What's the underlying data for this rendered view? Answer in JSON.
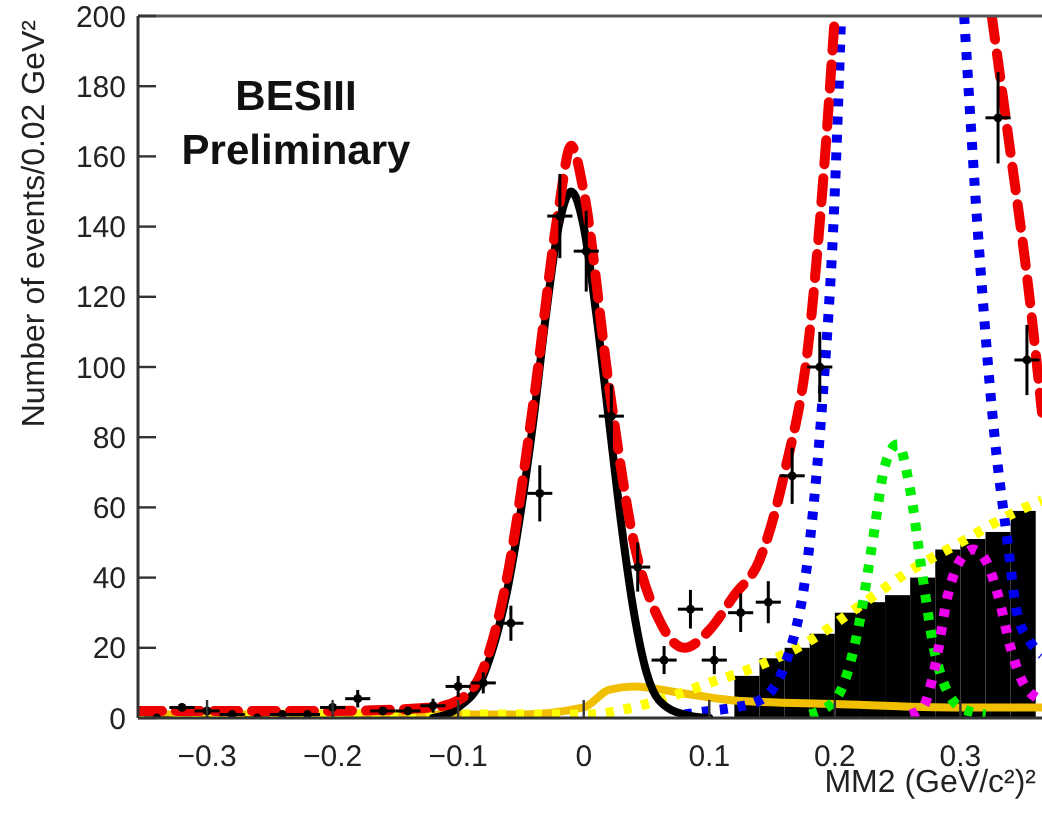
{
  "chart_data": {
    "type": "line",
    "xlabel": "MM2 (GeV/c²)²",
    "ylabel": "Number of events/0.02 GeV²",
    "annotations": [
      "BESIII",
      "Preliminary"
    ],
    "xlim": [
      -0.355,
      0.365
    ],
    "ylim": [
      0,
      200
    ],
    "xticks": [
      {
        "value": -0.3,
        "label": "−0.3"
      },
      {
        "value": -0.2,
        "label": "−0.2"
      },
      {
        "value": -0.1,
        "label": "−0.1"
      },
      0,
      0.1,
      0.2,
      0.3
    ],
    "yticks": [
      0,
      20,
      40,
      60,
      80,
      100,
      120,
      140,
      160,
      180,
      200
    ],
    "grid": false,
    "series": [
      {
        "type": "histogram",
        "color": "#000000",
        "bins": [
          0.12,
          0.14,
          0.16,
          0.18,
          0.2,
          0.22,
          0.24,
          0.26,
          0.28,
          0.3,
          0.32,
          0.34,
          0.36
        ],
        "values": [
          12,
          17,
          20,
          24,
          30,
          33,
          35,
          40,
          48,
          51,
          53,
          59
        ]
      },
      {
        "color": "#f0c000",
        "line_style": "solid",
        "x": [
          -0.355,
          -0.2,
          -0.05,
          0,
          0.02,
          0.04,
          0.08,
          0.12,
          0.2,
          0.3,
          0.365
        ],
        "values": [
          1,
          1,
          1,
          3,
          8,
          9,
          7,
          5,
          4,
          3,
          3
        ]
      },
      {
        "type": "line",
        "color": "#ffff00",
        "line_style": "dotted",
        "x": [
          -0.355,
          0,
          0.06,
          0.1,
          0.14,
          0.18,
          0.22,
          0.26,
          0.3,
          0.34,
          0.365
        ],
        "values": [
          1,
          1,
          5,
          10,
          15,
          22,
          32,
          42,
          50,
          58,
          62
        ]
      },
      {
        "type": "line",
        "color": "#00ee00",
        "line_style": "dotted",
        "x": [
          0.18,
          0.2,
          0.22,
          0.23,
          0.24,
          0.25,
          0.26,
          0.27,
          0.28,
          0.3,
          0.32
        ],
        "values": [
          1,
          5,
          28,
          50,
          72,
          78,
          65,
          40,
          18,
          3,
          1
        ]
      },
      {
        "type": "line",
        "color": "#ee00ee",
        "line_style": "dotted",
        "x": [
          0.26,
          0.27,
          0.28,
          0.29,
          0.3,
          0.31,
          0.32,
          0.33,
          0.34,
          0.35,
          0.365
        ],
        "values": [
          1,
          3,
          15,
          35,
          45,
          48,
          45,
          35,
          20,
          10,
          5
        ]
      },
      {
        "type": "line",
        "color": "#0000ee",
        "line_style": "dotted",
        "x": [
          0.08,
          0.1,
          0.12,
          0.14,
          0.16,
          0.18,
          0.19,
          0.2,
          0.205
        ],
        "values": [
          1,
          2,
          3,
          5,
          15,
          50,
          90,
          150,
          200
        ]
      },
      {
        "type": "line",
        "color": "#0000ee",
        "line_style": "dotted",
        "x": [
          0.303,
          0.314,
          0.327,
          0.338,
          0.345,
          0.355,
          0.365
        ],
        "values": [
          200,
          138,
          81,
          49,
          30,
          22,
          18
        ]
      },
      {
        "type": "line",
        "color": "#000000",
        "line_style": "solid",
        "x": [
          -0.12,
          -0.1,
          -0.08,
          -0.06,
          -0.04,
          -0.03,
          -0.02,
          -0.01,
          0,
          0.01,
          0.02,
          0.03,
          0.04,
          0.05,
          0.06,
          0.08,
          0.1
        ],
        "values": [
          0,
          3,
          12,
          38,
          85,
          115,
          140,
          150,
          140,
          115,
          85,
          55,
          30,
          13,
          5,
          1,
          0
        ]
      },
      {
        "type": "line",
        "color": "#ee0000",
        "line_style": "dashed",
        "x": [
          -0.355,
          -0.2,
          -0.12,
          -0.1,
          -0.08,
          -0.06,
          -0.04,
          -0.02,
          -0.01,
          0,
          0.02,
          0.04,
          0.06,
          0.08,
          0.1,
          0.12,
          0.14,
          0.16,
          0.18,
          0.19,
          0.2
        ],
        "values": [
          2,
          2,
          3,
          5,
          14,
          42,
          90,
          145,
          163,
          150,
          95,
          50,
          28,
          20,
          25,
          35,
          45,
          70,
          110,
          150,
          200
        ]
      },
      {
        "type": "line",
        "color": "#ee0000",
        "line_style": "dashed",
        "x": [
          0.325,
          0.338,
          0.354,
          0.365
        ],
        "values": [
          200,
          166,
          123,
          87
        ]
      },
      {
        "type": "scatter",
        "color": "#000000",
        "marker": "circle",
        "x": [
          -0.34,
          -0.32,
          -0.3,
          -0.28,
          -0.26,
          -0.24,
          -0.22,
          -0.2,
          -0.18,
          -0.16,
          -0.14,
          -0.12,
          -0.1,
          -0.08,
          -0.058,
          -0.035,
          -0.019,
          0.002,
          0.022,
          0.043,
          0.064,
          0.085,
          0.104,
          0.125,
          0.147,
          0.166,
          0.188,
          0.33,
          0.353
        ],
        "values": [
          0,
          3,
          2,
          1,
          0,
          1,
          1,
          3,
          5.5,
          2,
          2,
          3.5,
          9,
          10,
          27,
          64,
          143,
          133,
          86,
          43,
          16.5,
          31,
          16.5,
          30,
          33,
          69,
          100,
          171,
          102
        ],
        "errors": [
          1,
          null,
          null,
          1,
          1,
          1,
          1,
          null,
          2.5,
          null,
          null,
          2,
          3,
          3,
          5,
          8,
          12,
          11.5,
          9,
          7,
          4,
          5.5,
          4,
          5.5,
          6,
          8,
          10,
          13,
          10
        ],
        "xerrors": [
          0.01,
          0.01,
          0.01,
          0.01,
          0.01,
          0.01,
          0.01,
          0.01,
          0.01,
          0.01,
          0.01,
          0.01,
          0.01,
          0.01,
          0.01,
          0.01,
          0.01,
          0.01,
          0.01,
          0.01,
          0.01,
          0.01,
          0.01,
          0.01,
          0.01,
          0.01,
          0.01,
          0.01,
          0.01
        ]
      }
    ]
  }
}
